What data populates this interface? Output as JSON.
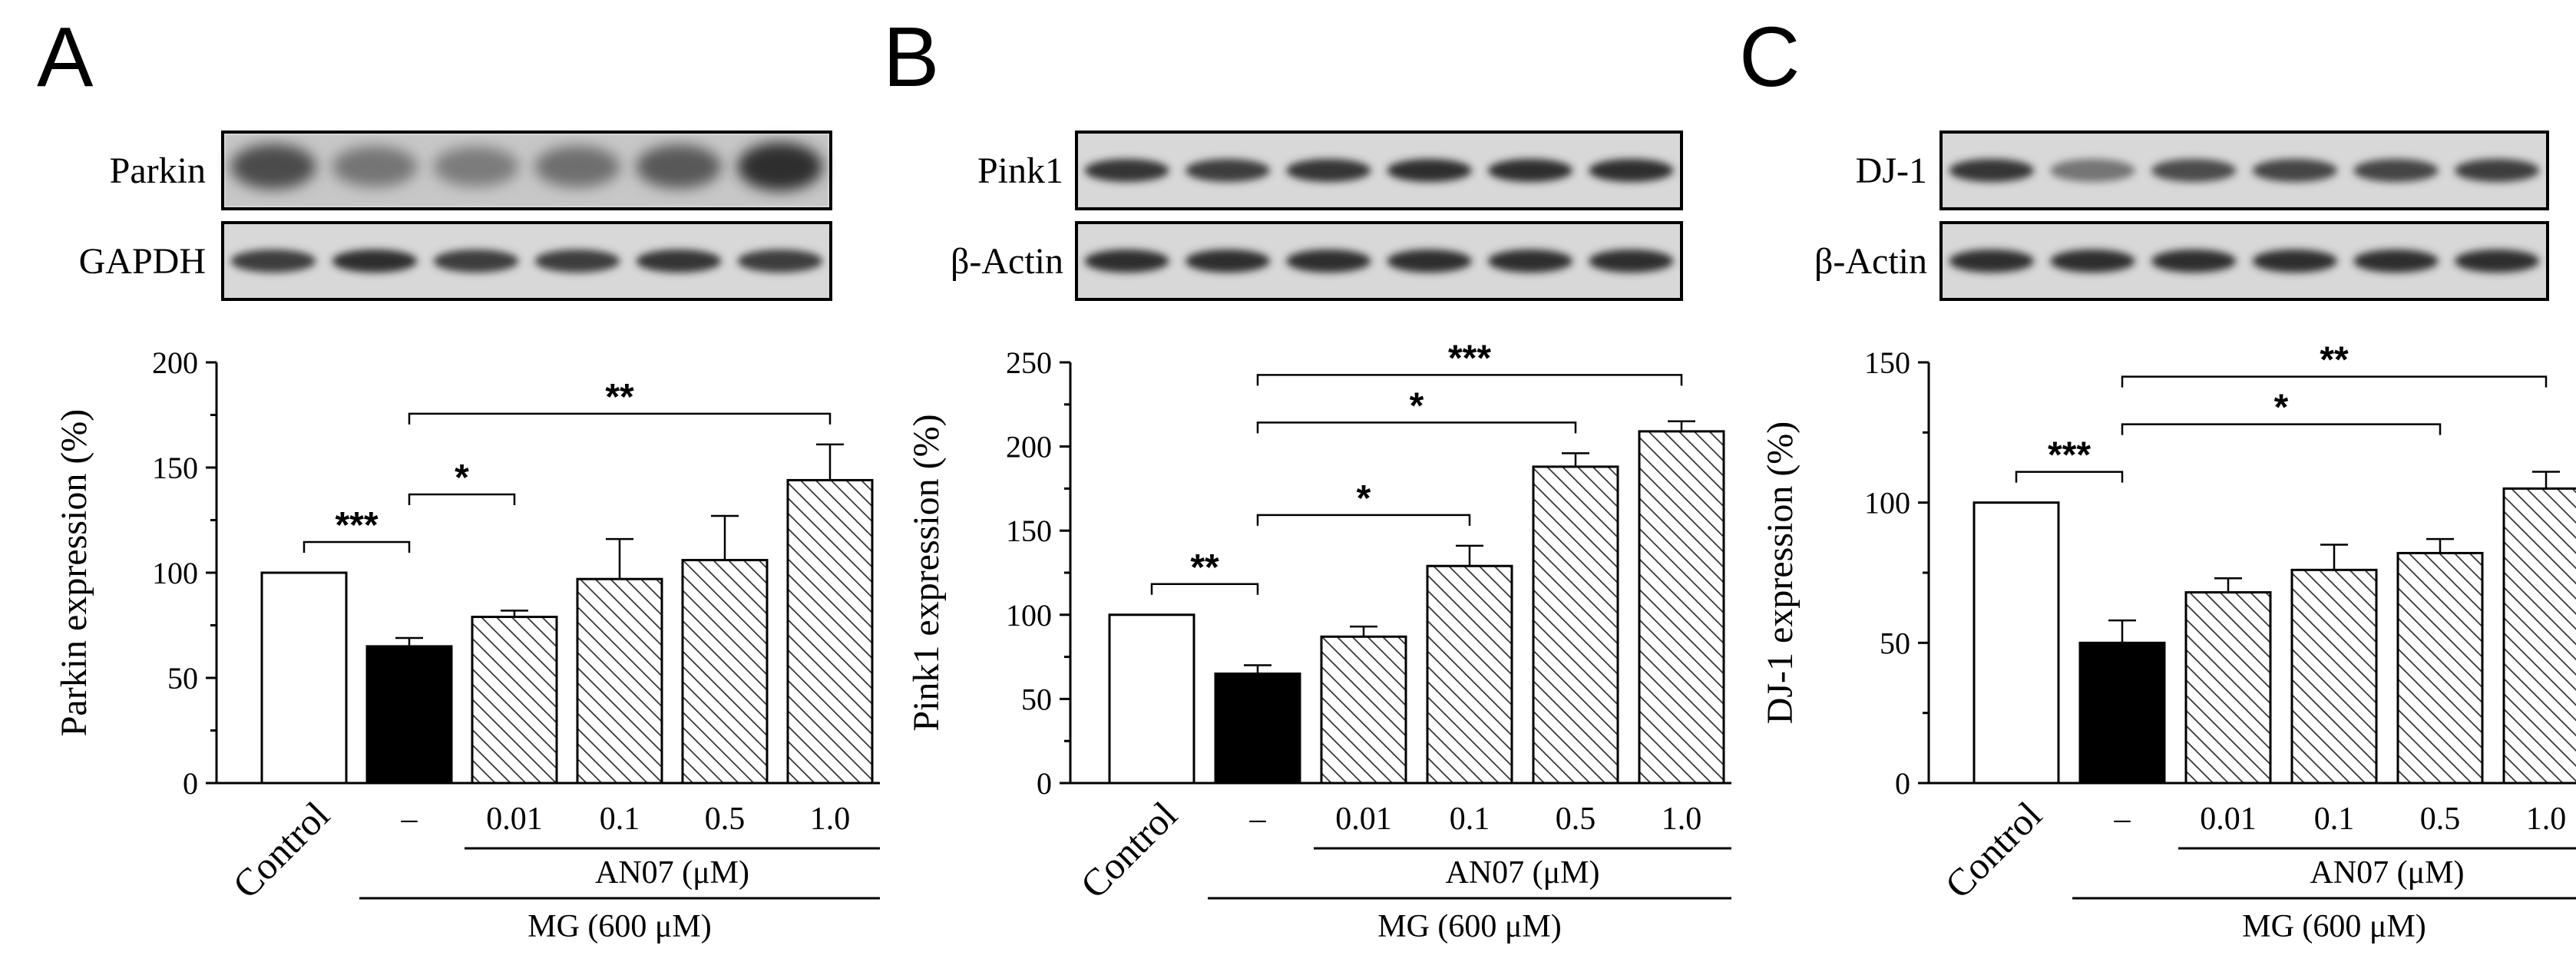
{
  "chart_data": [
    {
      "panel": "A",
      "type": "bar",
      "ylabel": "Parkin expression (%)",
      "ylim": [
        0,
        200
      ],
      "yticks": [
        0,
        50,
        100,
        150,
        200
      ],
      "categories": [
        "Control",
        "–",
        "0.01",
        "0.1",
        "0.5",
        "1.0"
      ],
      "values": [
        100,
        65,
        79,
        97,
        106,
        144
      ],
      "errors": [
        0,
        4,
        3,
        19,
        21,
        17
      ],
      "fills": [
        "white",
        "black",
        "hatched",
        "hatched",
        "hatched",
        "hatched"
      ],
      "blot_labels": [
        "Parkin",
        "GAPDH"
      ],
      "treatment_label": "AN07 (μM)",
      "group_label": "MG (600 μM)",
      "significance": [
        {
          "from": 0,
          "to": 1,
          "label": "***"
        },
        {
          "from": 1,
          "to": 2,
          "label": "*"
        },
        {
          "from": 1,
          "to": 5,
          "label": "**"
        }
      ]
    },
    {
      "panel": "B",
      "type": "bar",
      "ylabel": "Pink1 expression (%)",
      "ylim": [
        0,
        250
      ],
      "yticks": [
        0,
        50,
        100,
        150,
        200,
        250
      ],
      "categories": [
        "Control",
        "–",
        "0.01",
        "0.1",
        "0.5",
        "1.0"
      ],
      "values": [
        100,
        65,
        87,
        129,
        188,
        209
      ],
      "errors": [
        0,
        5,
        6,
        12,
        8,
        6
      ],
      "fills": [
        "white",
        "black",
        "hatched",
        "hatched",
        "hatched",
        "hatched"
      ],
      "blot_labels": [
        "Pink1",
        "β-Actin"
      ],
      "treatment_label": "AN07 (μM)",
      "group_label": "MG (600 μM)",
      "significance": [
        {
          "from": 0,
          "to": 1,
          "label": "**"
        },
        {
          "from": 1,
          "to": 3,
          "label": "*"
        },
        {
          "from": 1,
          "to": 4,
          "label": "*"
        },
        {
          "from": 1,
          "to": 5,
          "label": "***"
        }
      ]
    },
    {
      "panel": "C",
      "type": "bar",
      "ylabel": "DJ-1 expression (%)",
      "ylim": [
        0,
        150
      ],
      "yticks": [
        0,
        50,
        100,
        150
      ],
      "categories": [
        "Control",
        "–",
        "0.01",
        "0.1",
        "0.5",
        "1.0"
      ],
      "values": [
        100,
        50,
        68,
        76,
        82,
        105
      ],
      "errors": [
        0,
        8,
        5,
        9,
        5,
        6
      ],
      "fills": [
        "white",
        "black",
        "hatched",
        "hatched",
        "hatched",
        "hatched"
      ],
      "blot_labels": [
        "DJ-1",
        "β-Actin"
      ],
      "treatment_label": "AN07 (μM)",
      "group_label": "MG (600 μM)",
      "significance": [
        {
          "from": 0,
          "to": 1,
          "label": "***"
        },
        {
          "from": 1,
          "to": 4,
          "label": "*"
        },
        {
          "from": 1,
          "to": 5,
          "label": "**"
        }
      ]
    }
  ]
}
